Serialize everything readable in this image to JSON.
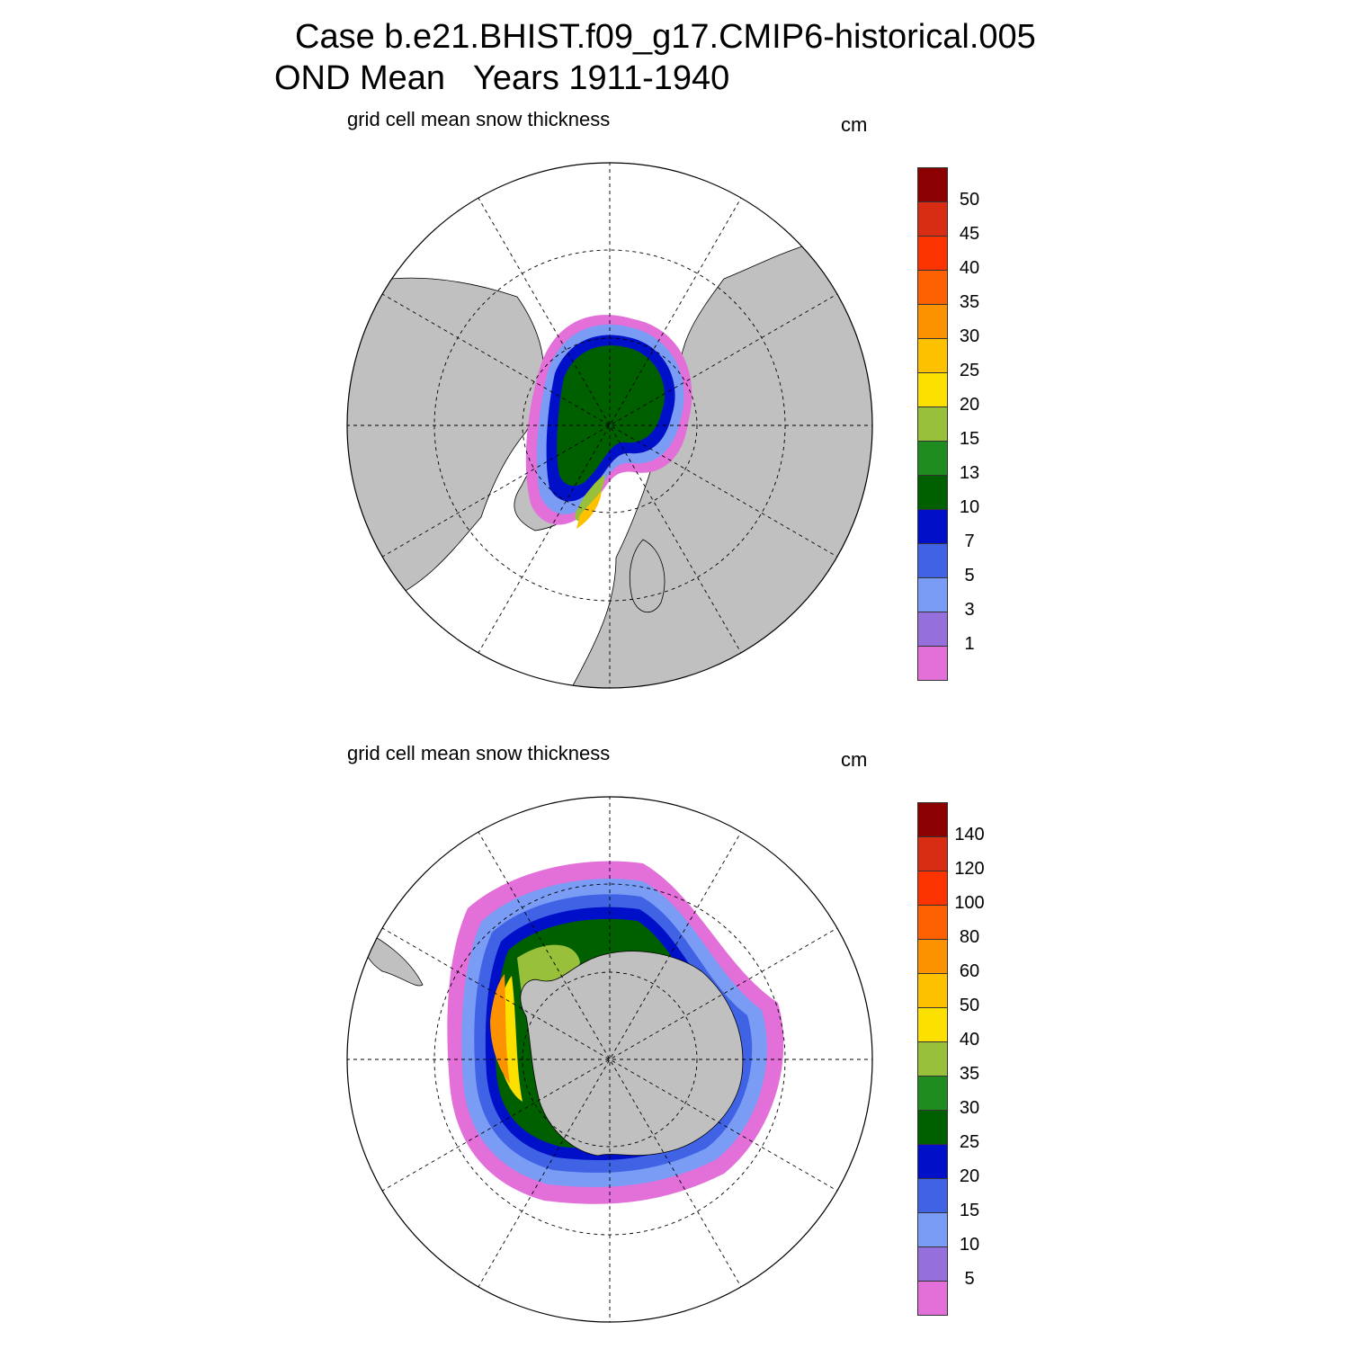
{
  "title": {
    "line1": "Case b.e21.BHIST.f09_g17.CMIP6-historical.005",
    "line2": "OND Mean   Years 1911-1940"
  },
  "panels": [
    {
      "hemisphere": "north",
      "title": "grid cell mean snow thickness",
      "units": "cm",
      "colorbar": {
        "levels": [
          "1",
          "3",
          "5",
          "7",
          "10",
          "13",
          "15",
          "20",
          "25",
          "30",
          "35",
          "40",
          "45",
          "50"
        ],
        "colors": [
          "#e36fd9",
          "#9570dc",
          "#7b9cf5",
          "#4063e6",
          "#0010c8",
          "#006000",
          "#1f8c1f",
          "#98c03a",
          "#fbe000",
          "#fdc100",
          "#fd9200",
          "#fd6000",
          "#fb3300",
          "#d82c13",
          "#8b0000"
        ]
      }
    },
    {
      "hemisphere": "south",
      "title": "grid cell mean snow thickness",
      "units": "cm",
      "colorbar": {
        "levels": [
          "5",
          "10",
          "15",
          "20",
          "25",
          "30",
          "35",
          "40",
          "50",
          "60",
          "80",
          "100",
          "120",
          "140"
        ],
        "colors": [
          "#e36fd9",
          "#9570dc",
          "#7b9cf5",
          "#4063e6",
          "#0010c8",
          "#006000",
          "#1f8c1f",
          "#98c03a",
          "#fbe000",
          "#fdc100",
          "#fd9200",
          "#fd6000",
          "#fb3300",
          "#d82c13",
          "#8b0000"
        ]
      }
    }
  ],
  "colors": {
    "land": "#c0c0c0",
    "ocean": "#ffffff"
  }
}
